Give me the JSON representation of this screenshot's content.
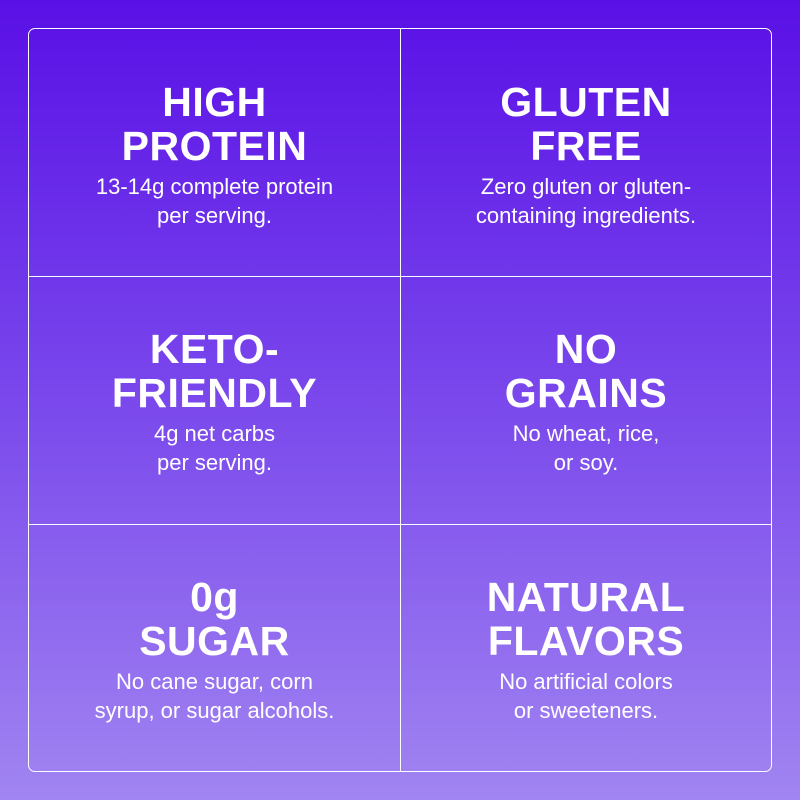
{
  "cells": [
    {
      "title": [
        "HIGH",
        "PROTEIN"
      ],
      "description": [
        "13-14g complete protein",
        "per serving."
      ]
    },
    {
      "title": [
        "GLUTEN",
        "FREE"
      ],
      "description": [
        "Zero gluten or gluten-",
        "containing ingredients."
      ]
    },
    {
      "title": [
        "KETO-",
        "FRIENDLY"
      ],
      "description": [
        "4g net carbs",
        "per serving."
      ]
    },
    {
      "title": [
        "NO",
        "GRAINS"
      ],
      "description": [
        "No wheat, rice,",
        "or soy."
      ]
    },
    {
      "title": [
        "0g",
        "SUGAR"
      ],
      "description": [
        "No cane sugar, corn",
        "syrup, or sugar alcohols."
      ]
    },
    {
      "title": [
        "NATURAL",
        "FLAVORS"
      ],
      "description": [
        "No artificial colors",
        "or sweeteners."
      ]
    }
  ]
}
